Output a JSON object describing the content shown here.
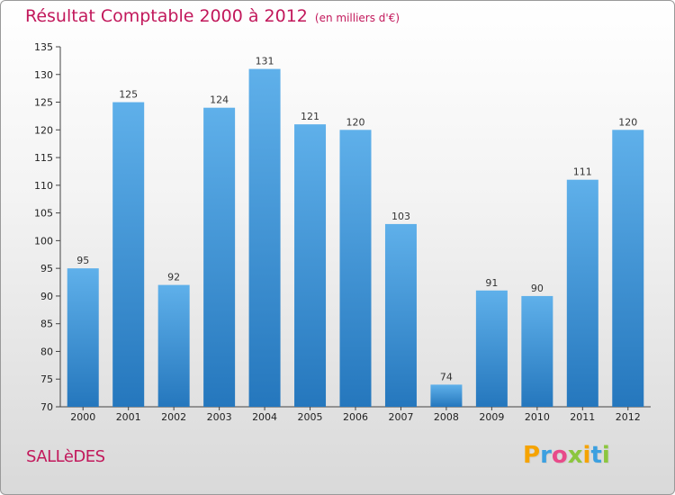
{
  "header": {
    "title": "Résultat Comptable 2000 à 2012",
    "unit": "(en milliers d'€)"
  },
  "commune": "SALLèDES",
  "logo": {
    "text": "Proxiti",
    "letters": [
      {
        "ch": "P",
        "color": "#f5a300"
      },
      {
        "ch": "r",
        "color": "#3ca0e0"
      },
      {
        "ch": "o",
        "color": "#e84b8a"
      },
      {
        "ch": "x",
        "color": "#8cc63f"
      },
      {
        "ch": "i",
        "color": "#f5a300"
      },
      {
        "ch": "t",
        "color": "#3ca0e0"
      },
      {
        "ch": "i",
        "color": "#8cc63f"
      }
    ]
  },
  "colors": {
    "bar_light": "#5fb0ea",
    "bar_dark": "#2577bd",
    "accent": "#c2185b"
  },
  "chart_data": {
    "type": "bar",
    "title": "Résultat Comptable 2000 à 2012",
    "subtitle": "(en milliers d'€)",
    "xlabel": "",
    "ylabel": "",
    "categories": [
      "2000",
      "2001",
      "2002",
      "2003",
      "2004",
      "2005",
      "2006",
      "2007",
      "2008",
      "2009",
      "2010",
      "2011",
      "2012"
    ],
    "values": [
      95,
      125,
      92,
      124,
      131,
      121,
      120,
      103,
      74,
      91,
      90,
      111,
      120
    ],
    "ylim": [
      70,
      135
    ],
    "yticks": [
      70,
      75,
      80,
      85,
      90,
      95,
      100,
      105,
      110,
      115,
      120,
      125,
      130,
      135
    ],
    "grid": false,
    "legend": "none"
  }
}
